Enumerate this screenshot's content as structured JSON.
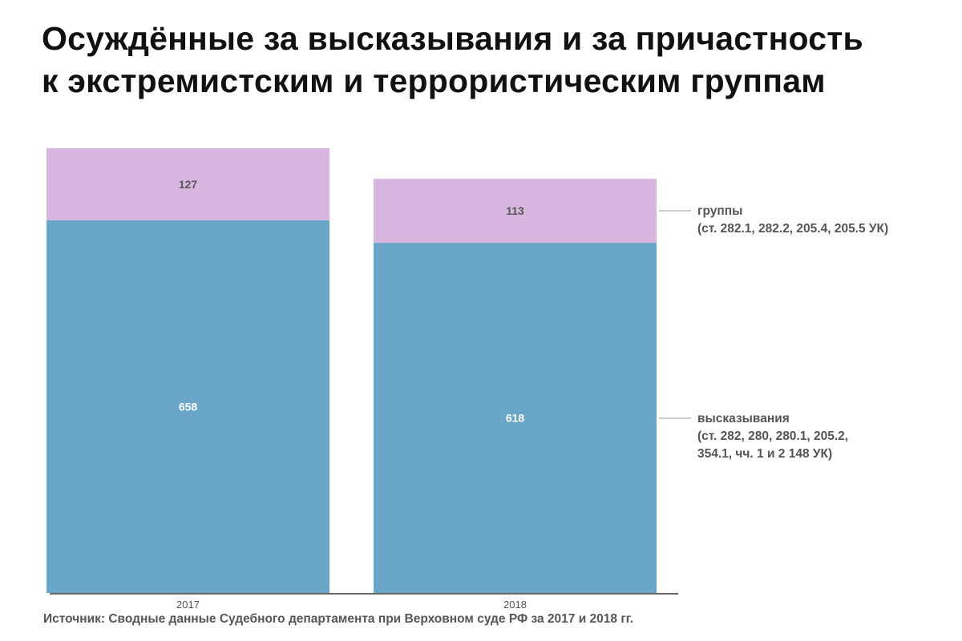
{
  "title_lines": [
    "Осуждённые за высказывания и за причастность",
    "к экстремистским и террористическим группам"
  ],
  "source": "Источник: Сводные данные Судебного департамента при Верховном суде РФ за 2017 и 2018 гг.",
  "colors": {
    "speech": "#6aa6c8",
    "groups": "#d9b6e0",
    "axis": "#333333",
    "label_dark": "#555555",
    "label_light": "#ffffff"
  },
  "chart_data": {
    "type": "bar",
    "stacked": true,
    "categories": [
      "2017",
      "2018"
    ],
    "series": [
      {
        "key": "speech",
        "name_lines": [
          "высказывания",
          "(ст. 282, 280, 280.1, 205.2,",
          "354.1, чч. 1 и 2 148 УК)"
        ],
        "values": [
          658,
          618
        ]
      },
      {
        "key": "groups",
        "name_lines": [
          "группы",
          "(ст. 282.1, 282.2, 205.4, 205.5 УК)"
        ],
        "values": [
          127,
          113
        ]
      }
    ],
    "data_labels": [
      [
        "658",
        "618"
      ],
      [
        "127",
        "113"
      ]
    ],
    "legend_position": "right",
    "grid": false,
    "ylim": [
      0,
      785
    ]
  }
}
